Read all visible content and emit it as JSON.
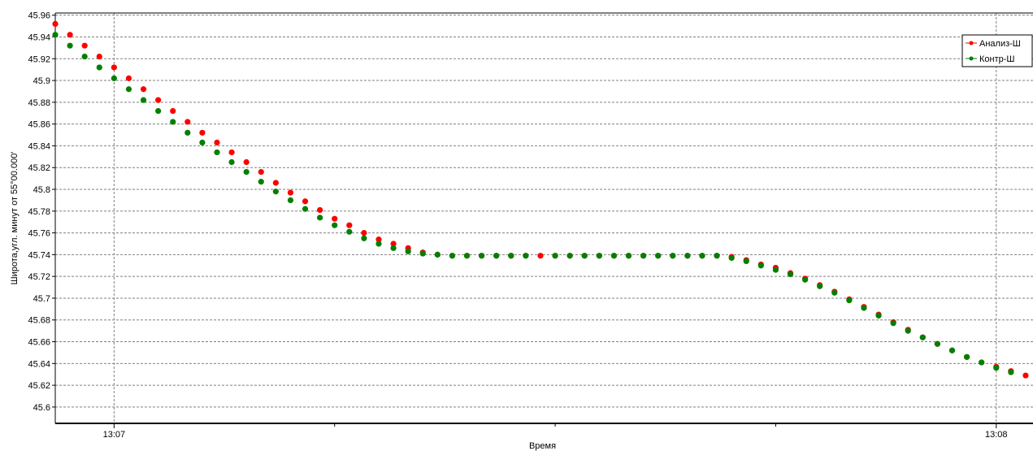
{
  "chart_data": {
    "type": "scatter",
    "title": "",
    "xlabel": "Время",
    "ylabel": "Широта,угл. минут от 55°00.000'",
    "ylim": [
      45.585,
      45.962
    ],
    "y_ticks": [
      45.6,
      45.62,
      45.64,
      45.66,
      45.68,
      45.7,
      45.72,
      45.74,
      45.76,
      45.78,
      45.8,
      45.82,
      45.84,
      45.86,
      45.88,
      45.9,
      45.92,
      45.94,
      45.96
    ],
    "y_tick_labels": [
      "45.6",
      "45.62",
      "45.64",
      "45.66",
      "45.68",
      "45.7",
      "45.72",
      "45.74",
      "45.76",
      "45.78",
      "45.8",
      "45.82",
      "45.84",
      "45.86",
      "45.88",
      "45.9",
      "45.92",
      "45.94",
      "45.96"
    ],
    "xlim_sec": [
      -4,
      62.5
    ],
    "x_major_ticks_sec": [
      0,
      60
    ],
    "x_tick_labels": [
      "13:07",
      "13:08"
    ],
    "x_minor_ticks_sec": [
      15,
      30,
      45
    ],
    "x_interval_sec": 1,
    "grid": true,
    "legend_position": "top-right",
    "series": [
      {
        "name": "Анализ-Ш",
        "color": "#ff0000",
        "x_start_sec": -4,
        "values": [
          45.952,
          45.942,
          45.932,
          45.922,
          45.912,
          45.902,
          45.892,
          45.882,
          45.872,
          45.862,
          45.852,
          45.843,
          45.834,
          45.825,
          45.816,
          45.806,
          45.797,
          45.789,
          45.781,
          45.773,
          45.767,
          45.76,
          45.754,
          45.75,
          45.746,
          45.742,
          45.74,
          45.739,
          45.739,
          45.739,
          45.739,
          45.739,
          45.739,
          45.739,
          45.739,
          45.739,
          45.739,
          45.739,
          45.739,
          45.739,
          45.739,
          45.739,
          45.739,
          45.739,
          45.739,
          45.739,
          45.738,
          45.735,
          45.731,
          45.728,
          45.723,
          45.718,
          45.712,
          45.706,
          45.699,
          45.692,
          45.685,
          45.678,
          45.671,
          45.664,
          45.658,
          45.652,
          45.646,
          45.641,
          45.637,
          45.633,
          45.629
        ]
      },
      {
        "name": "Контр-Ш",
        "color": "#008000",
        "x_start_sec": -4,
        "values": [
          45.942,
          45.932,
          45.922,
          45.912,
          45.902,
          45.892,
          45.882,
          45.872,
          45.862,
          45.852,
          45.843,
          45.834,
          45.825,
          45.816,
          45.807,
          45.798,
          45.79,
          45.782,
          45.774,
          45.767,
          45.761,
          45.755,
          45.75,
          45.746,
          45.743,
          45.741,
          45.74,
          45.739,
          45.739,
          45.739,
          45.739,
          45.739,
          45.739,
          null,
          45.739,
          45.739,
          45.739,
          45.739,
          45.739,
          45.739,
          45.739,
          45.739,
          45.739,
          45.739,
          45.739,
          45.739,
          45.737,
          45.734,
          45.73,
          45.726,
          45.722,
          45.717,
          45.711,
          45.705,
          45.698,
          45.691,
          45.684,
          45.677,
          45.67,
          45.664,
          45.658,
          45.652,
          45.646,
          45.641,
          45.636,
          45.632
        ]
      }
    ]
  }
}
